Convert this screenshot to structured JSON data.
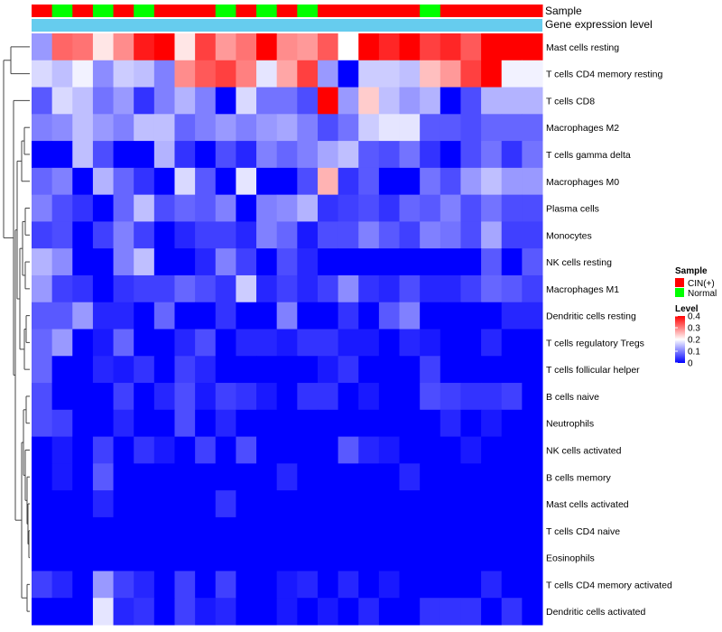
{
  "chart_data": {
    "type": "heatmap",
    "annotation_tracks": [
      "Sample",
      "Gene expression level"
    ],
    "legend": {
      "sample_title": "Sample",
      "sample_items": [
        {
          "label": "CIN(+)",
          "color": "#ff0000"
        },
        {
          "label": "Normal",
          "color": "#00ff00"
        }
      ],
      "level_title": "Level",
      "level_ticks": [
        "0.4",
        "0.3",
        "0.2",
        "0.1",
        "0"
      ],
      "level_tick_values": [
        0.4,
        0.3,
        0.2,
        0.1,
        0.0
      ]
    },
    "color_scale": {
      "min": 0,
      "mid": 0.2,
      "max": 0.4,
      "low": "#0000ff",
      "midColor": "#ffffff",
      "high": "#ff0000"
    },
    "gene_level_color": "#66ccee",
    "sample_groups": [
      "CIN(+)",
      "Normal",
      "CIN(+)",
      "Normal",
      "CIN(+)",
      "Normal",
      "CIN(+)",
      "CIN(+)",
      "CIN(+)",
      "Normal",
      "CIN(+)",
      "Normal",
      "CIN(+)",
      "Normal",
      "CIN(+)",
      "CIN(+)",
      "CIN(+)",
      "CIN(+)",
      "CIN(+)",
      "Normal",
      "CIN(+)",
      "CIN(+)",
      "CIN(+)",
      "CIN(+)",
      "CIN(+)"
    ],
    "rows": [
      "Mast cells resting",
      "T cells CD4 memory resting",
      "T cells CD8",
      "Macrophages M2",
      "T cells gamma delta",
      "Macrophages M0",
      "Plasma cells",
      "Monocytes",
      "NK cells resting",
      "Macrophages M1",
      "Dendritic cells resting",
      "T cells regulatory  Tregs",
      "T cells follicular helper",
      "B cells naive",
      "Neutrophils",
      "NK cells activated",
      "B cells memory",
      "Mast cells activated",
      "T cells CD4 naive",
      "Eosinophils",
      "T cells CD4 memory activated",
      "Dendritic cells activated"
    ],
    "values": [
      [
        0.12,
        0.32,
        0.31,
        0.22,
        0.29,
        0.38,
        0.4,
        0.22,
        0.35,
        0.28,
        0.31,
        0.4,
        0.29,
        0.28,
        0.33,
        0.2,
        0.4,
        0.37,
        0.4,
        0.35,
        0.37,
        0.33,
        0.4,
        0.4,
        0.4
      ],
      [
        0.17,
        0.15,
        0.19,
        0.11,
        0.16,
        0.15,
        0.1,
        0.29,
        0.33,
        0.35,
        0.3,
        0.18,
        0.27,
        0.35,
        0.12,
        0.0,
        0.16,
        0.16,
        0.15,
        0.25,
        0.28,
        0.35,
        0.4,
        0.19,
        0.19
      ],
      [
        0.07,
        0.17,
        0.15,
        0.09,
        0.12,
        0.04,
        0.1,
        0.14,
        0.1,
        0.0,
        0.17,
        0.09,
        0.09,
        0.06,
        0.4,
        0.12,
        0.24,
        0.15,
        0.12,
        0.14,
        0.0,
        0.06,
        0.14,
        0.14,
        0.14
      ],
      [
        0.1,
        0.11,
        0.15,
        0.12,
        0.1,
        0.15,
        0.15,
        0.08,
        0.1,
        0.12,
        0.1,
        0.12,
        0.13,
        0.1,
        0.06,
        0.09,
        0.16,
        0.18,
        0.18,
        0.07,
        0.07,
        0.06,
        0.08,
        0.08,
        0.08
      ],
      [
        0.0,
        0.0,
        0.15,
        0.06,
        0.0,
        0.0,
        0.14,
        0.04,
        0.0,
        0.06,
        0.03,
        0.1,
        0.08,
        0.1,
        0.13,
        0.15,
        0.07,
        0.06,
        0.09,
        0.04,
        0.0,
        0.06,
        0.09,
        0.04,
        0.09
      ],
      [
        0.08,
        0.1,
        0.0,
        0.14,
        0.08,
        0.04,
        0.0,
        0.17,
        0.07,
        0.0,
        0.18,
        0.0,
        0.0,
        0.06,
        0.26,
        0.04,
        0.07,
        0.0,
        0.0,
        0.09,
        0.06,
        0.12,
        0.15,
        0.12,
        0.12
      ],
      [
        0.1,
        0.06,
        0.04,
        0.0,
        0.08,
        0.15,
        0.06,
        0.08,
        0.07,
        0.1,
        0.0,
        0.1,
        0.11,
        0.14,
        0.04,
        0.05,
        0.06,
        0.04,
        0.08,
        0.07,
        0.1,
        0.06,
        0.09,
        0.06,
        0.06
      ],
      [
        0.05,
        0.06,
        0.0,
        0.05,
        0.1,
        0.05,
        0.0,
        0.03,
        0.05,
        0.05,
        0.03,
        0.1,
        0.08,
        0.02,
        0.06,
        0.06,
        0.1,
        0.07,
        0.05,
        0.1,
        0.09,
        0.06,
        0.13,
        0.05,
        0.05
      ],
      [
        0.14,
        0.11,
        0.0,
        0.0,
        0.1,
        0.15,
        0.0,
        0.0,
        0.03,
        0.1,
        0.05,
        0.0,
        0.06,
        0.03,
        0.0,
        0.0,
        0.0,
        0.0,
        0.0,
        0.0,
        0.0,
        0.0,
        0.07,
        0.0,
        0.07
      ],
      [
        0.12,
        0.05,
        0.04,
        0.0,
        0.04,
        0.05,
        0.05,
        0.08,
        0.06,
        0.04,
        0.16,
        0.03,
        0.05,
        0.03,
        0.05,
        0.11,
        0.04,
        0.03,
        0.06,
        0.03,
        0.03,
        0.05,
        0.08,
        0.07,
        0.05
      ],
      [
        0.07,
        0.07,
        0.12,
        0.03,
        0.03,
        0.0,
        0.08,
        0.0,
        0.0,
        0.04,
        0.0,
        0.0,
        0.1,
        0.0,
        0.0,
        0.04,
        0.0,
        0.07,
        0.1,
        0.0,
        0.0,
        0.0,
        0.0,
        0.03,
        0.03
      ],
      [
        0.08,
        0.12,
        0.0,
        0.02,
        0.08,
        0.0,
        0.0,
        0.03,
        0.06,
        0.0,
        0.03,
        0.03,
        0.02,
        0.04,
        0.04,
        0.02,
        0.02,
        0.0,
        0.03,
        0.02,
        0.0,
        0.0,
        0.03,
        0.0,
        0.0
      ],
      [
        0.08,
        0.0,
        0.0,
        0.03,
        0.02,
        0.04,
        0.0,
        0.05,
        0.03,
        0.0,
        0.0,
        0.0,
        0.0,
        0.0,
        0.02,
        0.04,
        0.0,
        0.0,
        0.0,
        0.05,
        0.0,
        0.0,
        0.0,
        0.0,
        0.0
      ],
      [
        0.06,
        0.0,
        0.0,
        0.0,
        0.05,
        0.0,
        0.03,
        0.06,
        0.02,
        0.05,
        0.04,
        0.02,
        0.0,
        0.04,
        0.04,
        0.0,
        0.02,
        0.0,
        0.0,
        0.06,
        0.05,
        0.04,
        0.04,
        0.05,
        0.0
      ],
      [
        0.06,
        0.05,
        0.0,
        0.0,
        0.03,
        0.0,
        0.0,
        0.06,
        0.0,
        0.03,
        0.0,
        0.0,
        0.0,
        0.0,
        0.0,
        0.0,
        0.0,
        0.0,
        0.0,
        0.0,
        0.03,
        0.0,
        0.02,
        0.0,
        0.0
      ],
      [
        0.0,
        0.02,
        0.0,
        0.05,
        0.0,
        0.04,
        0.02,
        0.0,
        0.05,
        0.0,
        0.06,
        0.0,
        0.0,
        0.0,
        0.0,
        0.07,
        0.03,
        0.02,
        0.0,
        0.0,
        0.0,
        0.02,
        0.0,
        0.0,
        0.0
      ],
      [
        0.0,
        0.02,
        0.0,
        0.07,
        0.0,
        0.0,
        0.0,
        0.0,
        0.0,
        0.0,
        0.0,
        0.0,
        0.03,
        0.0,
        0.0,
        0.0,
        0.0,
        0.0,
        0.03,
        0.0,
        0.0,
        0.0,
        0.0,
        0.0,
        0.0
      ],
      [
        0.0,
        0.0,
        0.0,
        0.03,
        0.0,
        0.0,
        0.0,
        0.0,
        0.0,
        0.04,
        0.0,
        0.0,
        0.0,
        0.0,
        0.0,
        0.0,
        0.0,
        0.0,
        0.0,
        0.0,
        0.0,
        0.0,
        0.0,
        0.0,
        0.0
      ],
      [
        0.0,
        0.0,
        0.0,
        0.0,
        0.0,
        0.0,
        0.0,
        0.0,
        0.0,
        0.0,
        0.0,
        0.0,
        0.0,
        0.0,
        0.0,
        0.0,
        0.0,
        0.0,
        0.0,
        0.0,
        0.0,
        0.0,
        0.0,
        0.0,
        0.0
      ],
      [
        0.0,
        0.0,
        0.0,
        0.0,
        0.0,
        0.0,
        0.0,
        0.0,
        0.0,
        0.0,
        0.0,
        0.0,
        0.0,
        0.0,
        0.0,
        0.0,
        0.0,
        0.0,
        0.0,
        0.0,
        0.0,
        0.0,
        0.0,
        0.0,
        0.0
      ],
      [
        0.05,
        0.03,
        0.0,
        0.12,
        0.05,
        0.03,
        0.0,
        0.05,
        0.0,
        0.05,
        0.0,
        0.0,
        0.02,
        0.03,
        0.0,
        0.03,
        0.0,
        0.02,
        0.0,
        0.0,
        0.0,
        0.0,
        0.03,
        0.0,
        0.0
      ],
      [
        0.0,
        0.0,
        0.0,
        0.18,
        0.03,
        0.04,
        0.0,
        0.05,
        0.02,
        0.03,
        0.0,
        0.0,
        0.02,
        0.0,
        0.02,
        0.0,
        0.03,
        0.0,
        0.0,
        0.04,
        0.04,
        0.04,
        0.0,
        0.04,
        0.0
      ]
    ]
  }
}
